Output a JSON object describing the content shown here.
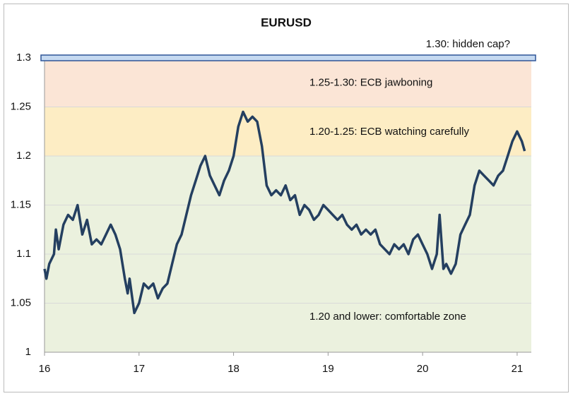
{
  "chart_data": {
    "type": "line",
    "title": "EURUSD",
    "x": [
      16.0,
      16.02,
      16.05,
      16.1,
      16.12,
      16.15,
      16.2,
      16.25,
      16.3,
      16.35,
      16.4,
      16.45,
      16.5,
      16.55,
      16.6,
      16.65,
      16.7,
      16.75,
      16.8,
      16.85,
      16.88,
      16.9,
      16.95,
      17.0,
      17.05,
      17.1,
      17.15,
      17.2,
      17.25,
      17.3,
      17.35,
      17.4,
      17.45,
      17.5,
      17.55,
      17.6,
      17.65,
      17.7,
      17.75,
      17.8,
      17.85,
      17.9,
      17.95,
      18.0,
      18.05,
      18.1,
      18.15,
      18.2,
      18.25,
      18.3,
      18.35,
      18.4,
      18.45,
      18.5,
      18.55,
      18.6,
      18.65,
      18.7,
      18.75,
      18.8,
      18.85,
      18.9,
      18.95,
      19.0,
      19.05,
      19.1,
      19.15,
      19.2,
      19.25,
      19.3,
      19.35,
      19.4,
      19.45,
      19.5,
      19.55,
      19.6,
      19.65,
      19.7,
      19.75,
      19.8,
      19.85,
      19.9,
      19.95,
      20.0,
      20.05,
      20.1,
      20.15,
      20.18,
      20.22,
      20.25,
      20.3,
      20.35,
      20.4,
      20.45,
      20.5,
      20.55,
      20.6,
      20.65,
      20.7,
      20.75,
      20.8,
      20.85,
      20.9,
      20.95,
      21.0,
      21.05,
      21.08
    ],
    "series": [
      {
        "name": "EURUSD",
        "color": "#243f60",
        "values": [
          1.085,
          1.075,
          1.09,
          1.1,
          1.125,
          1.105,
          1.13,
          1.14,
          1.135,
          1.15,
          1.12,
          1.135,
          1.11,
          1.115,
          1.11,
          1.12,
          1.13,
          1.12,
          1.105,
          1.075,
          1.06,
          1.075,
          1.04,
          1.05,
          1.07,
          1.065,
          1.07,
          1.055,
          1.065,
          1.07,
          1.09,
          1.11,
          1.12,
          1.14,
          1.16,
          1.175,
          1.19,
          1.2,
          1.18,
          1.17,
          1.16,
          1.175,
          1.185,
          1.2,
          1.23,
          1.245,
          1.235,
          1.24,
          1.235,
          1.21,
          1.17,
          1.16,
          1.165,
          1.16,
          1.17,
          1.155,
          1.16,
          1.14,
          1.15,
          1.145,
          1.135,
          1.14,
          1.15,
          1.145,
          1.14,
          1.135,
          1.14,
          1.13,
          1.125,
          1.13,
          1.12,
          1.125,
          1.12,
          1.125,
          1.11,
          1.105,
          1.1,
          1.11,
          1.105,
          1.11,
          1.1,
          1.115,
          1.12,
          1.11,
          1.1,
          1.085,
          1.1,
          1.14,
          1.085,
          1.09,
          1.08,
          1.09,
          1.12,
          1.13,
          1.14,
          1.17,
          1.185,
          1.18,
          1.175,
          1.17,
          1.18,
          1.185,
          1.2,
          1.215,
          1.225,
          1.215,
          1.205
        ]
      }
    ],
    "bands": [
      {
        "from": 1.0,
        "to": 1.2,
        "color": "#ebf1de",
        "label": "1.20 and lower: comfortable zone"
      },
      {
        "from": 1.2,
        "to": 1.25,
        "color": "#fdedc4",
        "label": "1.20-1.25: ECB watching carefully"
      },
      {
        "from": 1.25,
        "to": 1.3,
        "color": "#fbe5d6",
        "label": "1.25-1.30: ECB jawboning"
      }
    ],
    "cap": {
      "value": 1.3,
      "label": "1.30: hidden cap?",
      "color": "#c5d9f1"
    },
    "xlim": [
      16,
      21.15
    ],
    "xticks": [
      16,
      17,
      18,
      19,
      20,
      21
    ],
    "ylim": [
      1,
      1.3
    ],
    "yticks": [
      1,
      1.05,
      1.1,
      1.15,
      1.2,
      1.25,
      1.3
    ],
    "grid": true
  }
}
